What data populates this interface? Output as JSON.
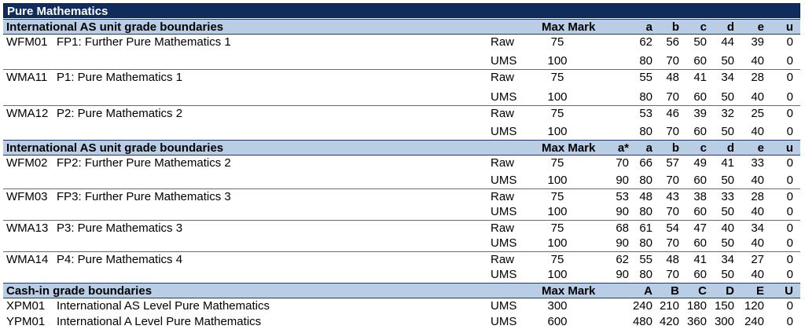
{
  "title": "Pure Mathematics",
  "sections": [
    {
      "heading": "International AS unit grade boundaries",
      "maxmark_label": "Max Mark",
      "grade_headers": [
        "",
        "a",
        "b",
        "c",
        "d",
        "e",
        "u"
      ],
      "units": [
        {
          "code": "WFM01",
          "name": "FP1: Further Pure Mathematics 1",
          "rows": [
            {
              "type": "Raw",
              "max": "75",
              "grades": [
                "",
                "62",
                "56",
                "50",
                "44",
                "39",
                "0"
              ]
            },
            {
              "type": "UMS",
              "max": "100",
              "grades": [
                "",
                "80",
                "70",
                "60",
                "50",
                "40",
                "0"
              ]
            }
          ]
        },
        {
          "code": "WMA11",
          "name": "P1: Pure Mathematics 1",
          "rows": [
            {
              "type": "Raw",
              "max": "75",
              "grades": [
                "",
                "55",
                "48",
                "41",
                "34",
                "28",
                "0"
              ]
            },
            {
              "type": "UMS",
              "max": "100",
              "grades": [
                "",
                "80",
                "70",
                "60",
                "50",
                "40",
                "0"
              ]
            }
          ]
        },
        {
          "code": "WMA12",
          "name": "P2: Pure Mathematics 2",
          "rows": [
            {
              "type": "Raw",
              "max": "75",
              "grades": [
                "",
                "53",
                "46",
                "39",
                "32",
                "25",
                "0"
              ]
            },
            {
              "type": "UMS",
              "max": "100",
              "grades": [
                "",
                "80",
                "70",
                "60",
                "50",
                "40",
                "0"
              ]
            }
          ]
        }
      ]
    },
    {
      "heading": "International AS unit grade boundaries",
      "maxmark_label": "Max Mark",
      "grade_headers": [
        "a*",
        "a",
        "b",
        "c",
        "d",
        "e",
        "u"
      ],
      "units": [
        {
          "code": "WFM02",
          "name": "FP2: Further Pure Mathematics 2",
          "rows": [
            {
              "type": "Raw",
              "max": "75",
              "grades": [
                "70",
                "66",
                "57",
                "49",
                "41",
                "33",
                "0"
              ]
            },
            {
              "type": "UMS",
              "max": "100",
              "grades": [
                "90",
                "80",
                "70",
                "60",
                "50",
                "40",
                "0"
              ]
            }
          ]
        },
        {
          "code": "WFM03",
          "name": "FP3: Further Pure Mathematics 3",
          "rows": [
            {
              "type": "Raw",
              "max": "75",
              "grades": [
                "53",
                "48",
                "43",
                "38",
                "33",
                "28",
                "0"
              ]
            },
            {
              "type": "UMS",
              "max": "100",
              "grades": [
                "90",
                "80",
                "70",
                "60",
                "50",
                "40",
                "0"
              ]
            }
          ]
        },
        {
          "code": "WMA13",
          "name": "P3: Pure Mathematics 3",
          "rows": [
            {
              "type": "Raw",
              "max": "75",
              "grades": [
                "68",
                "61",
                "54",
                "47",
                "40",
                "34",
                "0"
              ]
            },
            {
              "type": "UMS",
              "max": "100",
              "grades": [
                "90",
                "80",
                "70",
                "60",
                "50",
                "40",
                "0"
              ]
            }
          ]
        },
        {
          "code": "WMA14",
          "name": "P4: Pure Mathematics 4",
          "rows": [
            {
              "type": "Raw",
              "max": "75",
              "grades": [
                "62",
                "55",
                "48",
                "41",
                "34",
                "27",
                "0"
              ]
            },
            {
              "type": "UMS",
              "max": "100",
              "grades": [
                "90",
                "80",
                "70",
                "60",
                "50",
                "40",
                "0"
              ]
            }
          ]
        }
      ]
    },
    {
      "heading": "Cash-in grade boundaries",
      "maxmark_label": "Max Mark",
      "grade_headers": [
        "",
        "A",
        "B",
        "C",
        "D",
        "E",
        "U"
      ],
      "cashin": [
        {
          "code": "XPM01",
          "name": "International AS Level Pure Mathematics",
          "type": "UMS",
          "max": "300",
          "grades": [
            "",
            "240",
            "210",
            "180",
            "150",
            "120",
            "0"
          ]
        },
        {
          "code": "YPM01",
          "name": "International A Level Pure Mathematics",
          "type": "UMS",
          "max": "600",
          "grades": [
            "",
            "480",
            "420",
            "360",
            "300",
            "240",
            "0"
          ]
        }
      ]
    }
  ]
}
